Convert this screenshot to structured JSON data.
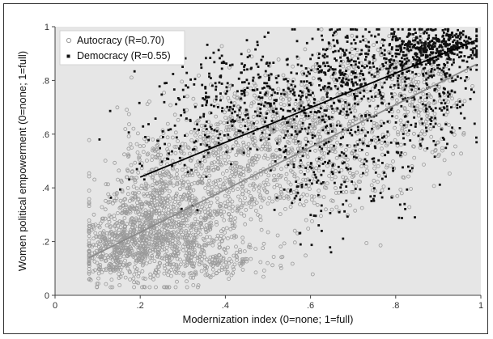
{
  "chart_data": {
    "type": "scatter",
    "xlabel": "Modernization index (0=none; 1=full)",
    "ylabel": "Women political empowerment (0=none; 1=full)",
    "xlim": [
      0,
      1
    ],
    "ylim": [
      0,
      1
    ],
    "xticks": [
      0,
      0.2,
      0.4,
      0.6,
      0.8,
      1
    ],
    "xtick_labels": [
      "0",
      ".2",
      ".4",
      ".6",
      ".8",
      "1"
    ],
    "yticks": [
      0,
      0.2,
      0.4,
      0.6,
      0.8,
      1
    ],
    "ytick_labels": [
      "0",
      ".2",
      ".4",
      ".6",
      ".8",
      "1"
    ],
    "grid": false,
    "legend_position": "top-left",
    "plot_background": "#e6e6e6",
    "series": [
      {
        "name": "Autocracy (R=0.70)",
        "marker": "hollow-circle",
        "color": "#9a9a9a",
        "fit_line": {
          "x": [
            0.08,
            0.99
          ],
          "y": [
            0.14,
            0.86
          ]
        },
        "clusters": [
          {
            "x": 0.15,
            "y": 0.17,
            "sx": 0.05,
            "sy": 0.06,
            "n": 420
          },
          {
            "x": 0.22,
            "y": 0.26,
            "sx": 0.06,
            "sy": 0.08,
            "n": 380
          },
          {
            "x": 0.3,
            "y": 0.22,
            "sx": 0.07,
            "sy": 0.09,
            "n": 360
          },
          {
            "x": 0.25,
            "y": 0.45,
            "sx": 0.07,
            "sy": 0.1,
            "n": 260
          },
          {
            "x": 0.38,
            "y": 0.4,
            "sx": 0.08,
            "sy": 0.12,
            "n": 320
          },
          {
            "x": 0.45,
            "y": 0.6,
            "sx": 0.08,
            "sy": 0.1,
            "n": 260
          },
          {
            "x": 0.55,
            "y": 0.5,
            "sx": 0.08,
            "sy": 0.12,
            "n": 260
          },
          {
            "x": 0.6,
            "y": 0.72,
            "sx": 0.07,
            "sy": 0.09,
            "n": 200
          },
          {
            "x": 0.72,
            "y": 0.55,
            "sx": 0.07,
            "sy": 0.12,
            "n": 160
          },
          {
            "x": 0.8,
            "y": 0.82,
            "sx": 0.07,
            "sy": 0.07,
            "n": 180
          },
          {
            "x": 0.88,
            "y": 0.65,
            "sx": 0.05,
            "sy": 0.1,
            "n": 120
          },
          {
            "x": 0.35,
            "y": 0.13,
            "sx": 0.08,
            "sy": 0.03,
            "n": 150
          }
        ]
      },
      {
        "name": "Democracy (R=0.55)",
        "marker": "filled-square",
        "color": "#111111",
        "fit_line": {
          "x": [
            0.2,
            0.99
          ],
          "y": [
            0.44,
            0.95
          ]
        },
        "clusters": [
          {
            "x": 0.3,
            "y": 0.6,
            "sx": 0.07,
            "sy": 0.12,
            "n": 90
          },
          {
            "x": 0.42,
            "y": 0.75,
            "sx": 0.07,
            "sy": 0.09,
            "n": 160
          },
          {
            "x": 0.55,
            "y": 0.7,
            "sx": 0.07,
            "sy": 0.12,
            "n": 200
          },
          {
            "x": 0.62,
            "y": 0.45,
            "sx": 0.05,
            "sy": 0.12,
            "n": 110
          },
          {
            "x": 0.7,
            "y": 0.85,
            "sx": 0.06,
            "sy": 0.08,
            "n": 260
          },
          {
            "x": 0.75,
            "y": 0.55,
            "sx": 0.06,
            "sy": 0.12,
            "n": 130
          },
          {
            "x": 0.85,
            "y": 0.9,
            "sx": 0.06,
            "sy": 0.05,
            "n": 320
          },
          {
            "x": 0.9,
            "y": 0.75,
            "sx": 0.05,
            "sy": 0.1,
            "n": 140
          },
          {
            "x": 0.93,
            "y": 0.93,
            "sx": 0.04,
            "sy": 0.03,
            "n": 180
          }
        ]
      }
    ]
  }
}
